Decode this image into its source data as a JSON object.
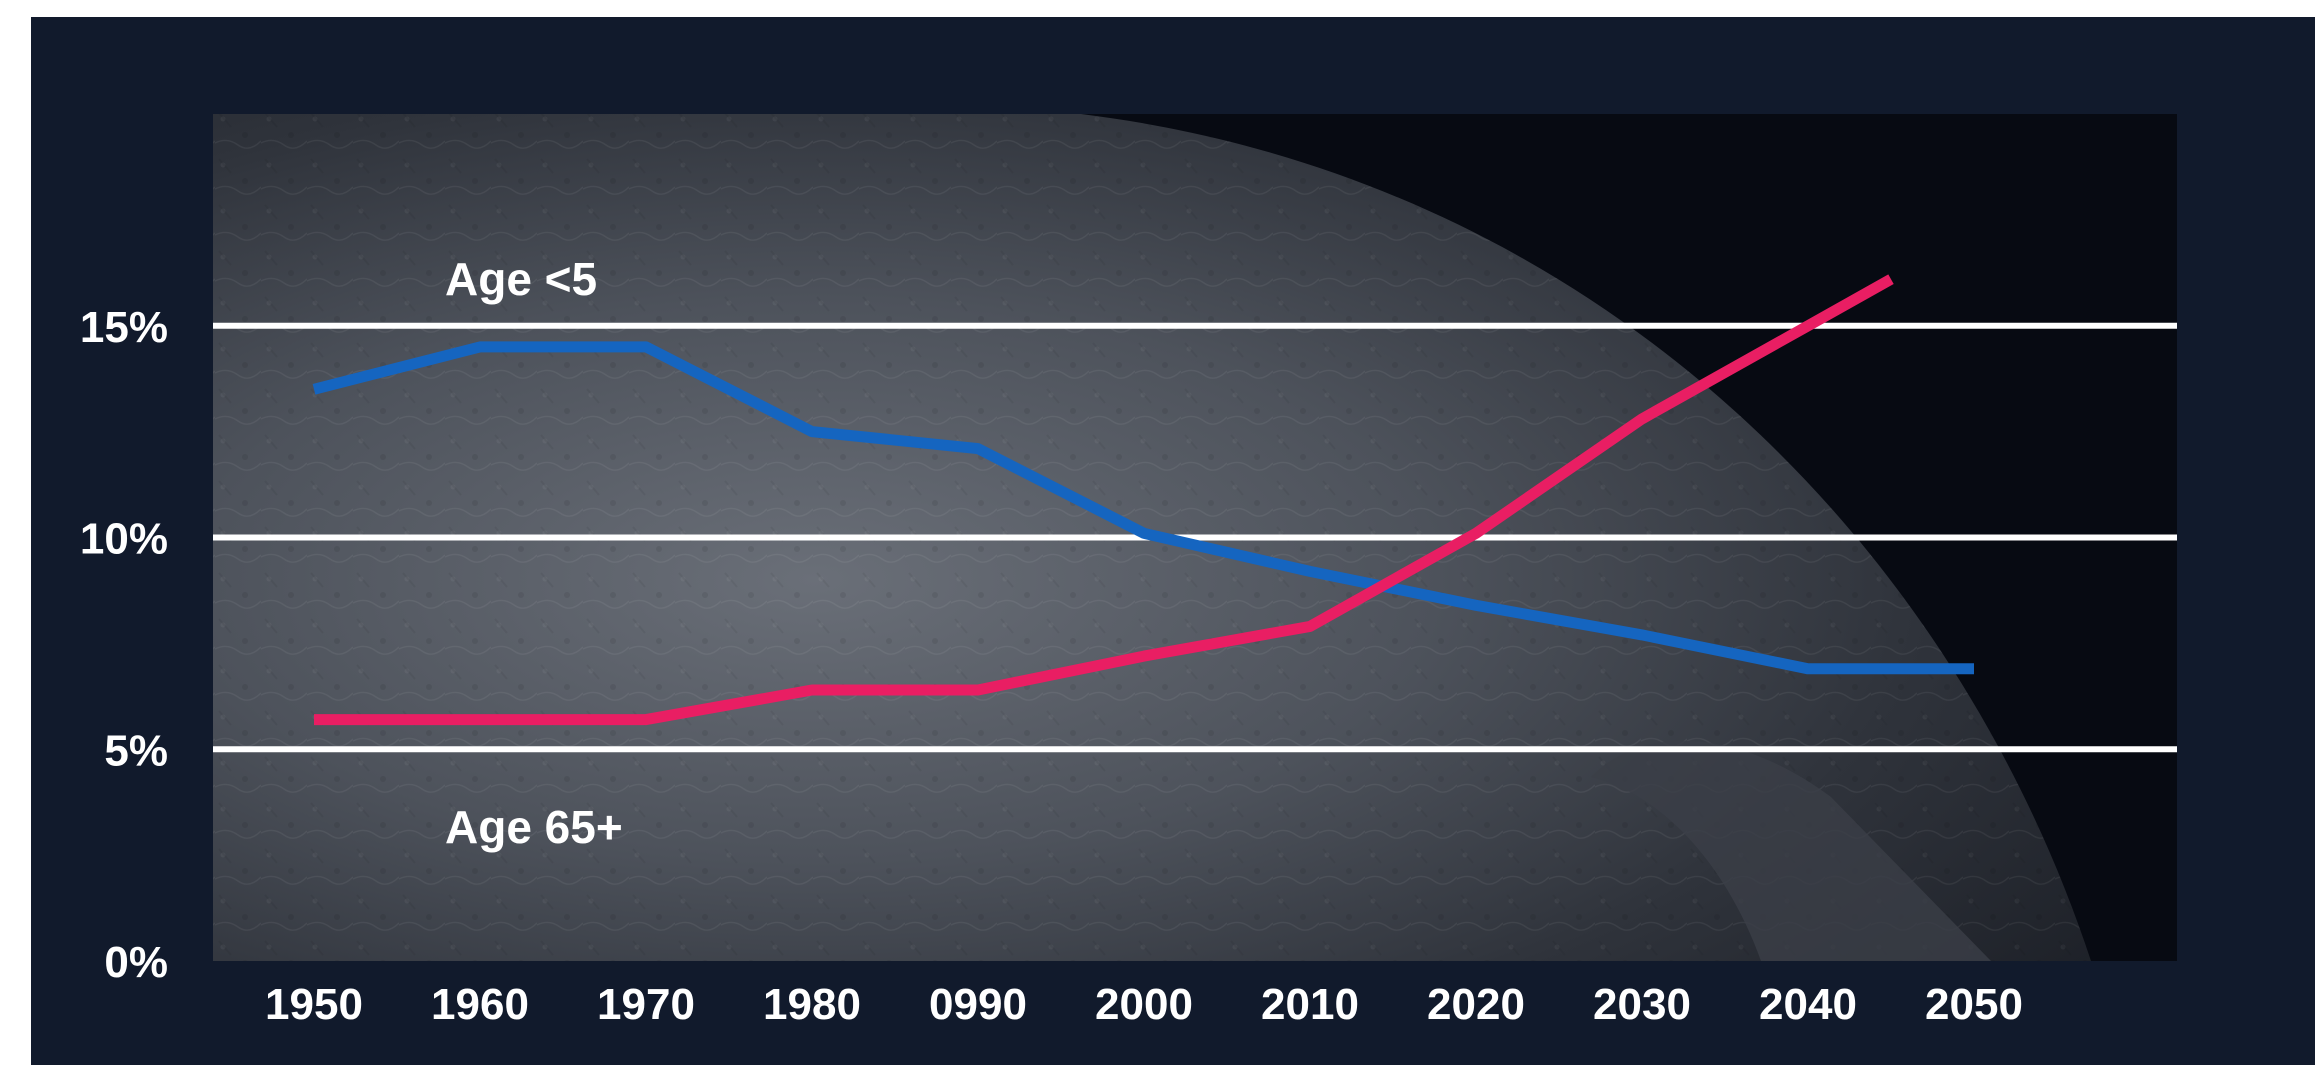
{
  "chart_data": {
    "type": "line",
    "title": "",
    "xlabel": "",
    "ylabel": "",
    "x": [
      "1950",
      "1960",
      "1970",
      "1980",
      "0990",
      "2000",
      "2010",
      "2020",
      "2030",
      "2040",
      "2050"
    ],
    "yticks": [
      "0%",
      "5%",
      "10%",
      "15%"
    ],
    "ylim": [
      0,
      20
    ],
    "grid": true,
    "background": "dark globe map photograph",
    "series": [
      {
        "name": "Age <5",
        "color": "#1565c0",
        "points": [
          {
            "x": 1950,
            "y": 13.5
          },
          {
            "x": 1960,
            "y": 14.5
          },
          {
            "x": 1970,
            "y": 14.5
          },
          {
            "x": 1980,
            "y": 12.5
          },
          {
            "x": 1990,
            "y": 12.1
          },
          {
            "x": 2000,
            "y": 10.1
          },
          {
            "x": 2010,
            "y": 9.2
          },
          {
            "x": 2020,
            "y": 8.4
          },
          {
            "x": 2030,
            "y": 7.7
          },
          {
            "x": 2040,
            "y": 6.9
          },
          {
            "x": 2050,
            "y": 6.9
          }
        ]
      },
      {
        "name": "Age 65+",
        "color": "#e91e63",
        "points": [
          {
            "x": 1950,
            "y": 5.7
          },
          {
            "x": 1960,
            "y": 5.7
          },
          {
            "x": 1970,
            "y": 5.7
          },
          {
            "x": 1980,
            "y": 6.4
          },
          {
            "x": 1990,
            "y": 6.4
          },
          {
            "x": 2000,
            "y": 7.2
          },
          {
            "x": 2010,
            "y": 7.9
          },
          {
            "x": 2020,
            "y": 10.1
          },
          {
            "x": 2030,
            "y": 12.8
          },
          {
            "x": 2040,
            "y": 15.0
          },
          {
            "x": 2045,
            "y": 16.1
          }
        ]
      }
    ]
  },
  "colors": {
    "frame": "#111a2c",
    "plot_dark": "#070a12",
    "gridline": "#ffffff",
    "text": "#ffffff"
  }
}
